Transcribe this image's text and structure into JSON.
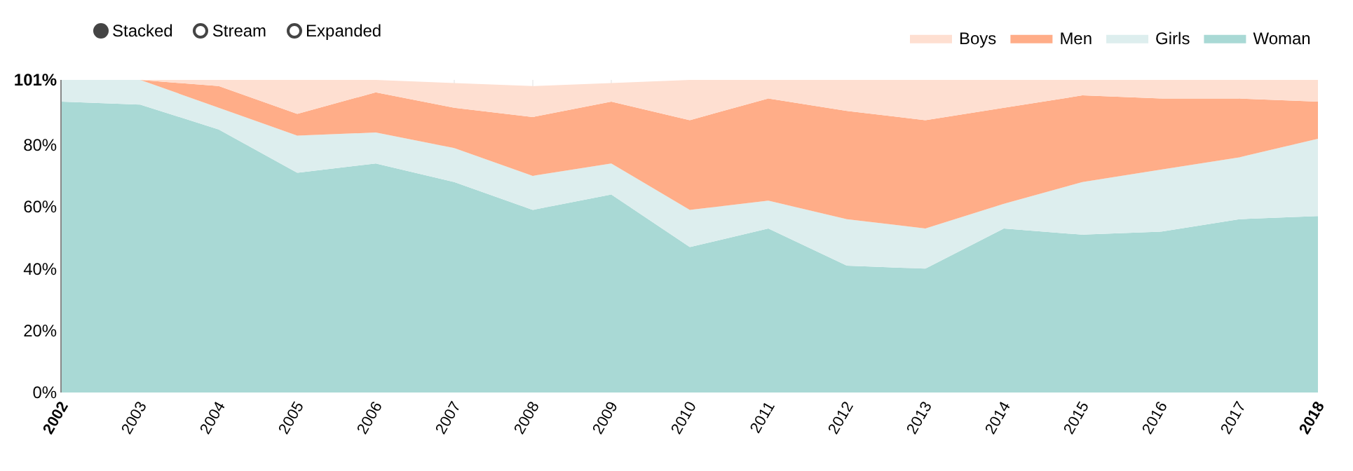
{
  "chart_data": {
    "type": "area",
    "stacked": true,
    "grid": true,
    "legend": "top right",
    "annotations": [
      "Stacked",
      "Stream",
      "Expanded"
    ],
    "categories": [
      "2002",
      "2003",
      "2004",
      "2005",
      "2006",
      "2007",
      "2008",
      "2009",
      "2010",
      "2011",
      "2012",
      "2013",
      "2014",
      "2015",
      "2016",
      "2017",
      "2018"
    ],
    "ylim": [
      0,
      101
    ],
    "yticks": [
      {
        "value": 0,
        "label": "0%"
      },
      {
        "value": 20,
        "label": "20%"
      },
      {
        "value": 40,
        "label": "40%"
      },
      {
        "value": 60,
        "label": "60%"
      },
      {
        "value": 80,
        "label": "80%"
      },
      {
        "value": 101,
        "label": "101%"
      }
    ],
    "series": [
      {
        "name": "Woman",
        "color": "#a9d9d5",
        "values": [
          94,
          93,
          85,
          71,
          74,
          68,
          59,
          64,
          47,
          53,
          41,
          40,
          53,
          51,
          52,
          56,
          57
        ]
      },
      {
        "name": "Girls",
        "color": "#ddeeee",
        "values": [
          7,
          8,
          7,
          12,
          10,
          11,
          11,
          10,
          12,
          9,
          15,
          13,
          8,
          17,
          20,
          20,
          25
        ]
      },
      {
        "name": "Men",
        "color": "#ffad88",
        "values": [
          0,
          0,
          7,
          7,
          13,
          13,
          19,
          20,
          29,
          33,
          35,
          35,
          31,
          28,
          23,
          19,
          12
        ]
      },
      {
        "name": "Boys",
        "color": "#fedfd1",
        "values": [
          0,
          0,
          2,
          11,
          4,
          8,
          10,
          6,
          13,
          6,
          10,
          13,
          9,
          5,
          6,
          6,
          7
        ]
      }
    ]
  }
}
